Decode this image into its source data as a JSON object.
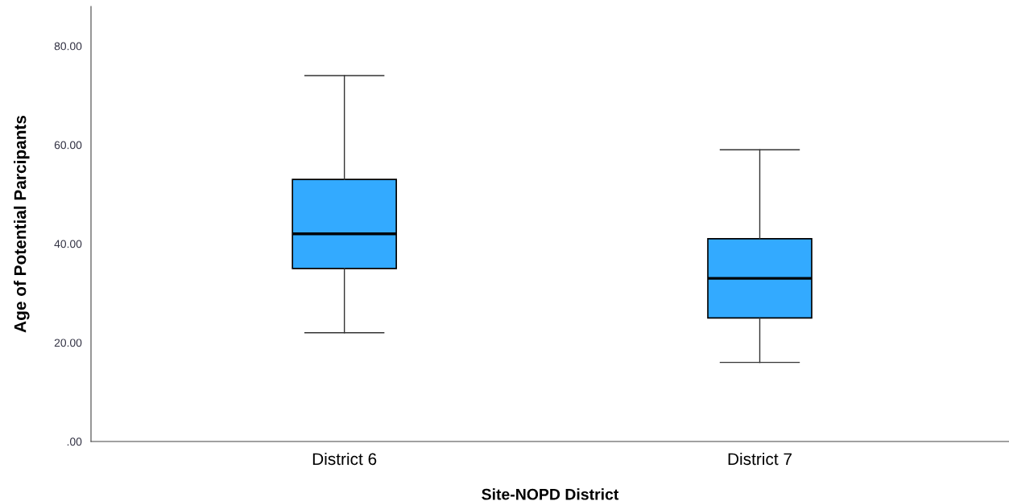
{
  "chart_data": {
    "type": "box",
    "xlabel": "Site-NOPD District",
    "ylabel": "Age of Potential Parcipants",
    "categories": [
      "District 6",
      "District 7"
    ],
    "boxes": [
      {
        "low": 22,
        "q1": 35,
        "median": 42,
        "q3": 53,
        "high": 74
      },
      {
        "low": 16,
        "q1": 25,
        "median": 33,
        "q3": 41,
        "high": 59
      }
    ],
    "color": "#33aaff",
    "ylim": [
      0,
      88
    ],
    "yticks": [
      {
        "value": 0,
        "label": ".00"
      },
      {
        "value": 20,
        "label": "20.00"
      },
      {
        "value": 40,
        "label": "40.00"
      },
      {
        "value": 60,
        "label": "60.00"
      },
      {
        "value": 80,
        "label": "80.00"
      }
    ],
    "grid": false,
    "legend": false
  }
}
